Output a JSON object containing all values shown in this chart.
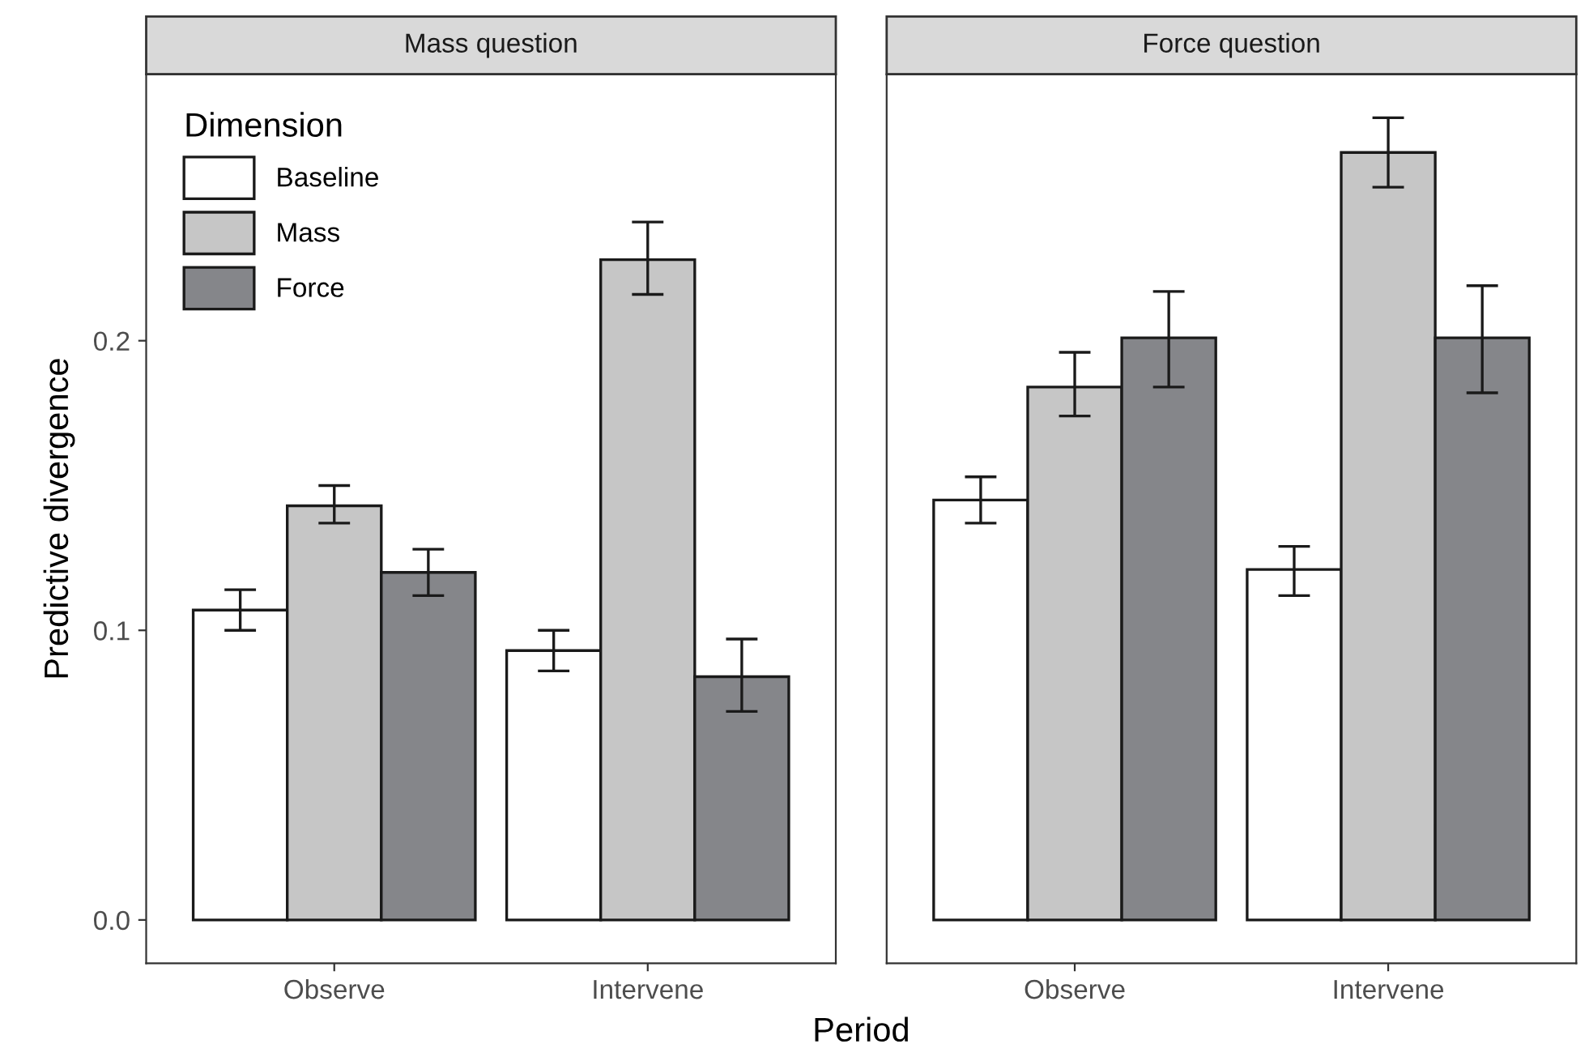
{
  "chart_data": [
    {
      "type": "bar",
      "title": "Mass question",
      "xlabel": "Period",
      "ylabel": "Predictive divergence",
      "legend_title": "Dimension",
      "legend": "top left",
      "grid": false,
      "categories": [
        "Observe",
        "Intervene"
      ],
      "ylim": [
        -0.015,
        0.292
      ],
      "yticks": [
        {
          "value": 0,
          "label": "0.0"
        },
        0.1,
        0.2
      ],
      "series": [
        {
          "name": "Baseline",
          "color": "#ffffff",
          "values": [
            0.107,
            0.093
          ],
          "errors": [
            [
              0.1,
              0.114
            ],
            [
              0.086,
              0.1
            ]
          ]
        },
        {
          "name": "Mass",
          "color": "#c6c6c6",
          "values": [
            0.143,
            0.228
          ],
          "errors": [
            [
              0.137,
              0.15
            ],
            [
              0.216,
              0.241
            ]
          ]
        },
        {
          "name": "Force",
          "color": "#85868a",
          "values": [
            0.12,
            0.084
          ],
          "errors": [
            [
              0.112,
              0.128
            ],
            [
              0.072,
              0.097
            ]
          ]
        }
      ]
    },
    {
      "type": "bar",
      "title": "Force question",
      "tick_labels": "x",
      "grid": false,
      "categories": [
        "Observe",
        "Intervene"
      ],
      "ylim": [
        -0.015,
        0.292
      ],
      "series": [
        {
          "color": "#ffffff",
          "values": [
            0.145,
            0.121
          ],
          "errors": [
            [
              0.137,
              0.153
            ],
            [
              0.112,
              0.129
            ]
          ]
        },
        {
          "color": "#c6c6c6",
          "values": [
            0.184,
            0.265
          ],
          "errors": [
            [
              0.174,
              0.196
            ],
            [
              0.253,
              0.277
            ]
          ]
        },
        {
          "color": "#85868a",
          "values": [
            0.201,
            0.201
          ],
          "errors": [
            [
              0.184,
              0.217
            ],
            [
              0.182,
              0.219
            ]
          ]
        }
      ]
    }
  ]
}
